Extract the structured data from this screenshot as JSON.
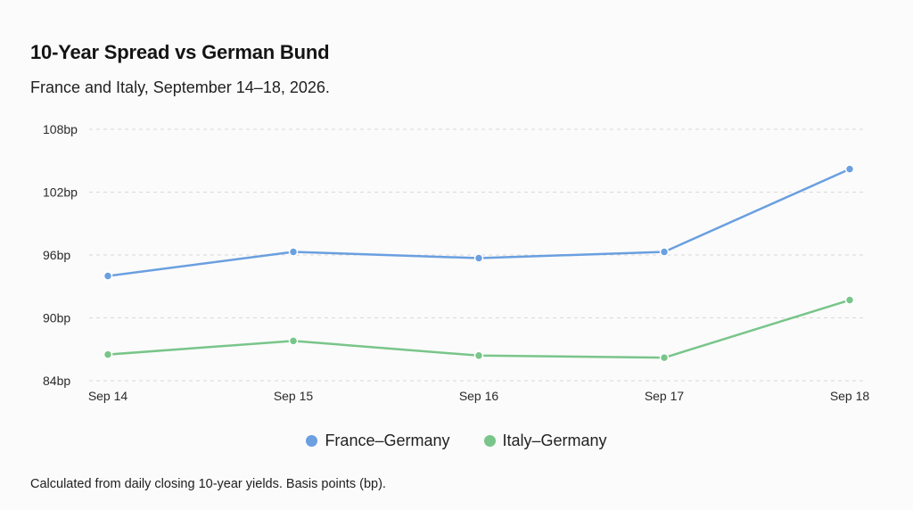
{
  "chart_data": {
    "type": "line",
    "title": "10-Year Spread vs German Bund",
    "subtitle": "France and Italy, September 14–18, 2026.",
    "categories": [
      "Sep 14",
      "Sep 15",
      "Sep 16",
      "Sep 17",
      "Sep 18"
    ],
    "y_ticks": [
      "84bp",
      "90bp",
      "96bp",
      "102bp",
      "108bp"
    ],
    "y_tick_values": [
      84,
      90,
      96,
      102,
      108
    ],
    "ylim": [
      84,
      108
    ],
    "grid": true,
    "legend_position": "bottom",
    "series": [
      {
        "name": "France–Germany",
        "color": "#6a9fe0",
        "values": [
          94.0,
          96.3,
          95.7,
          96.3,
          104.2
        ]
      },
      {
        "name": "Italy–Germany",
        "color": "#79c58a",
        "values": [
          86.5,
          87.8,
          86.4,
          86.2,
          91.7
        ]
      }
    ],
    "footnote": "Calculated from daily closing 10-year yields. Basis points (bp)."
  }
}
